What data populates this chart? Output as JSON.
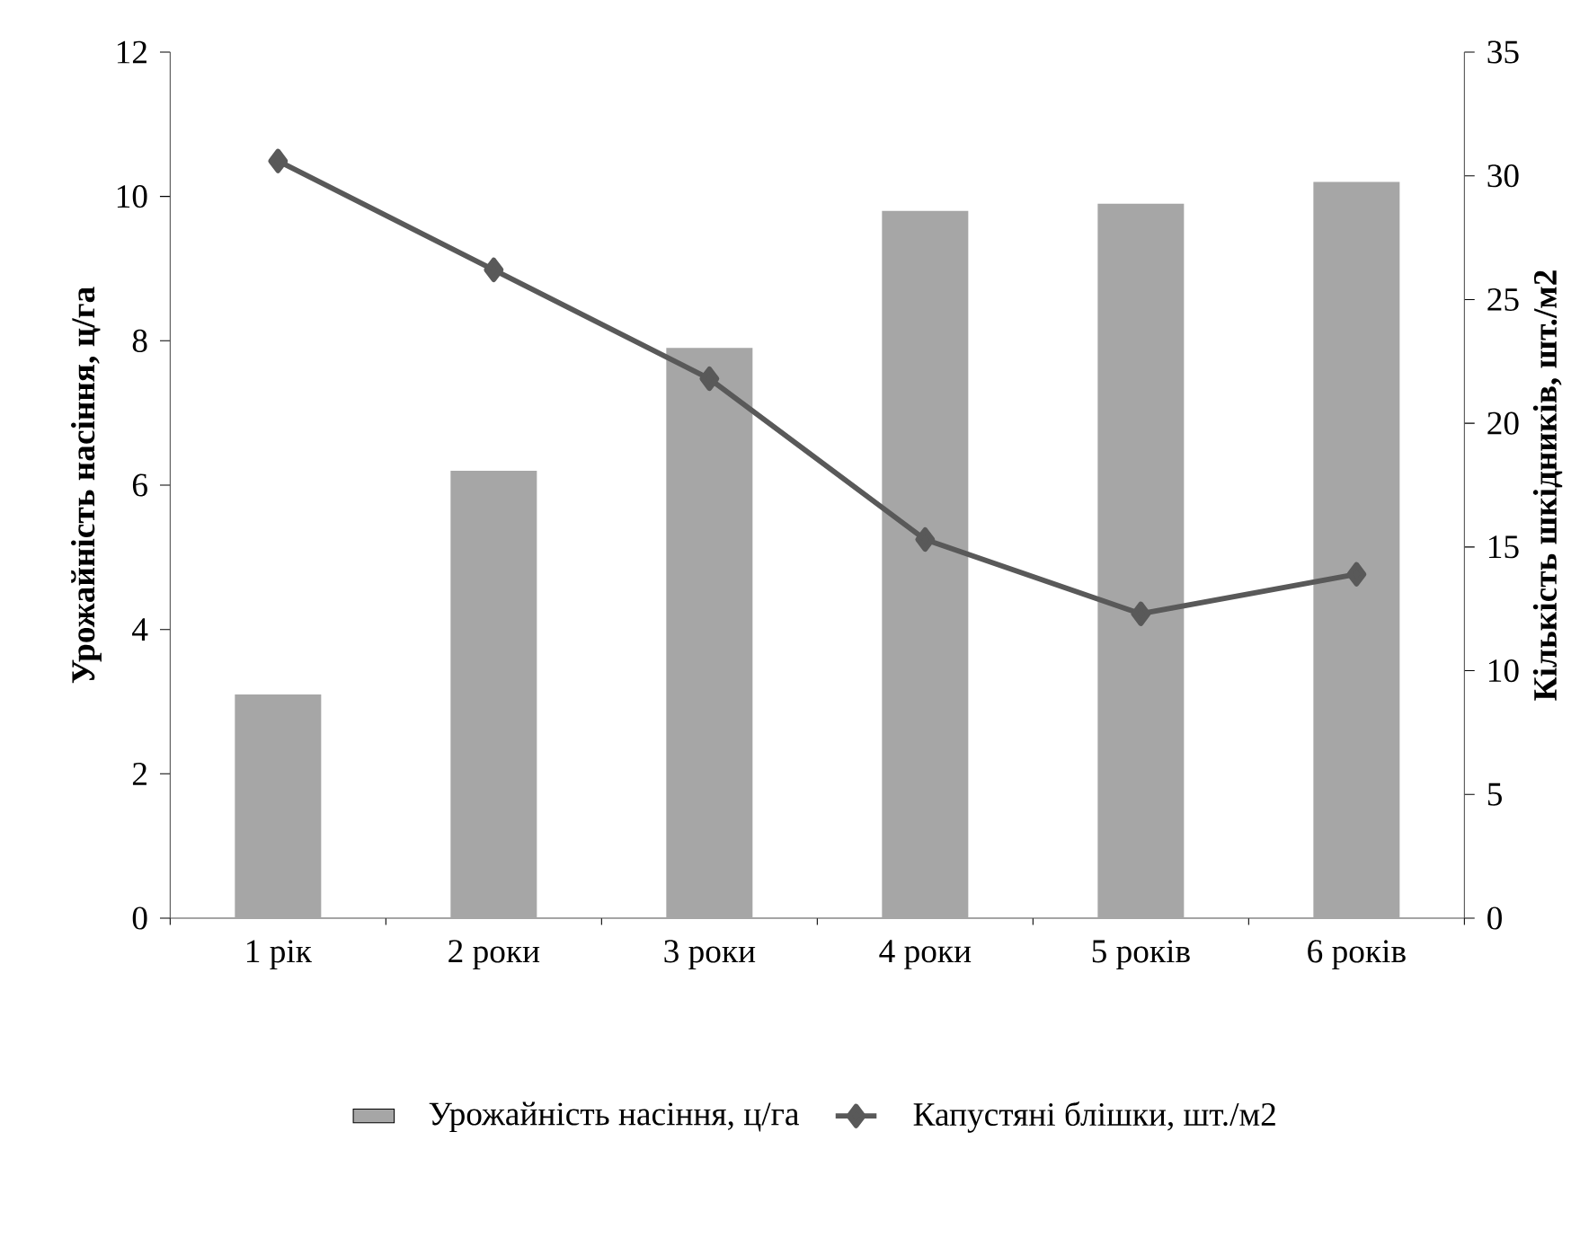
{
  "chart_data": {
    "type": "bar",
    "categories": [
      "1 рік",
      "2 роки",
      "3 роки",
      "4 роки",
      "5 років",
      "6 років"
    ],
    "ylabel": "Урожайність насіння, ц/га",
    "y2label": "Кількість шкідників, шт./м2",
    "ylim": [
      0,
      12
    ],
    "yticks": [
      0,
      2,
      4,
      6,
      8,
      10,
      12
    ],
    "y2lim": [
      0,
      35
    ],
    "y2ticks": [
      0,
      5,
      10,
      15,
      20,
      25,
      30,
      35
    ],
    "legend": "bottom",
    "series": [
      {
        "name": "Урожайність насіння, ц/га",
        "color": "#a6a6a6",
        "values": [
          3.1,
          6.2,
          7.9,
          9.8,
          9.9,
          10.2
        ]
      },
      {
        "name": "Капустяні блішки, шт./м2",
        "type": "line",
        "axis": "y2",
        "color": "#595959",
        "marker": "diamond",
        "line_style": "solid",
        "values": [
          30.6,
          26.2,
          21.8,
          15.3,
          12.3,
          13.9
        ]
      }
    ]
  }
}
